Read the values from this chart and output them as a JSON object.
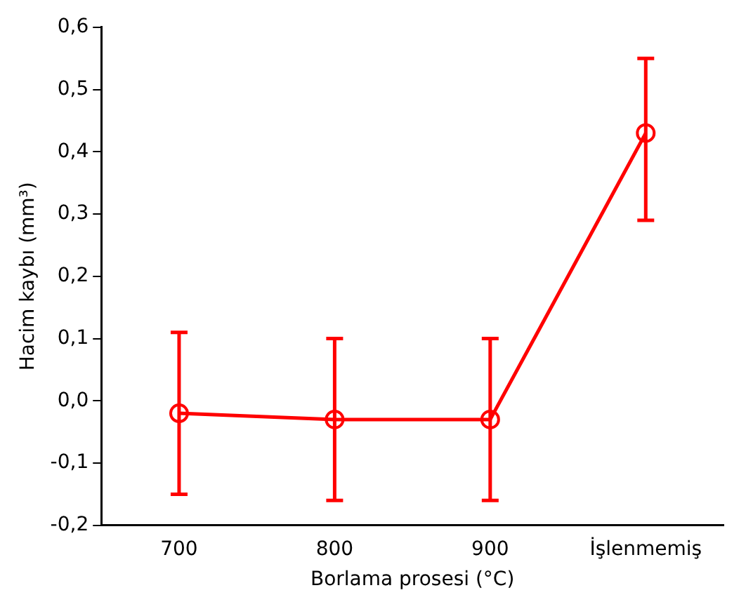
{
  "chart_data": {
    "type": "line",
    "xlabel": "Borlama prosesi (°C)",
    "ylabel": "Hacim kaybı (mm³)",
    "categories": [
      "700",
      "800",
      "900",
      "İşlenmemiş"
    ],
    "series": [
      {
        "color": "#ff0000",
        "values": [
          -0.02,
          -0.03,
          -0.03,
          0.43
        ],
        "errors": [
          0.13,
          0.13,
          0.13,
          [
            0.29,
            0.55
          ]
        ]
      }
    ],
    "ylim": [
      -0.2,
      0.6
    ],
    "yticks": [
      {
        "value": -0.2,
        "label": "-0,2"
      },
      {
        "value": -0.1,
        "label": "-0,1"
      },
      {
        "value": 0,
        "label": "0,0"
      },
      {
        "value": 0.1,
        "label": "0,1"
      },
      {
        "value": 0.2,
        "label": "0,2"
      },
      {
        "value": 0.3,
        "label": "0,3"
      },
      {
        "value": 0.4,
        "label": "0,4"
      },
      {
        "value": 0.5,
        "label": "0,5"
      },
      {
        "value": 0.6,
        "label": "0,6"
      }
    ],
    "grid": false,
    "legend": false,
    "marker": "circle",
    "line_style": "solid"
  }
}
